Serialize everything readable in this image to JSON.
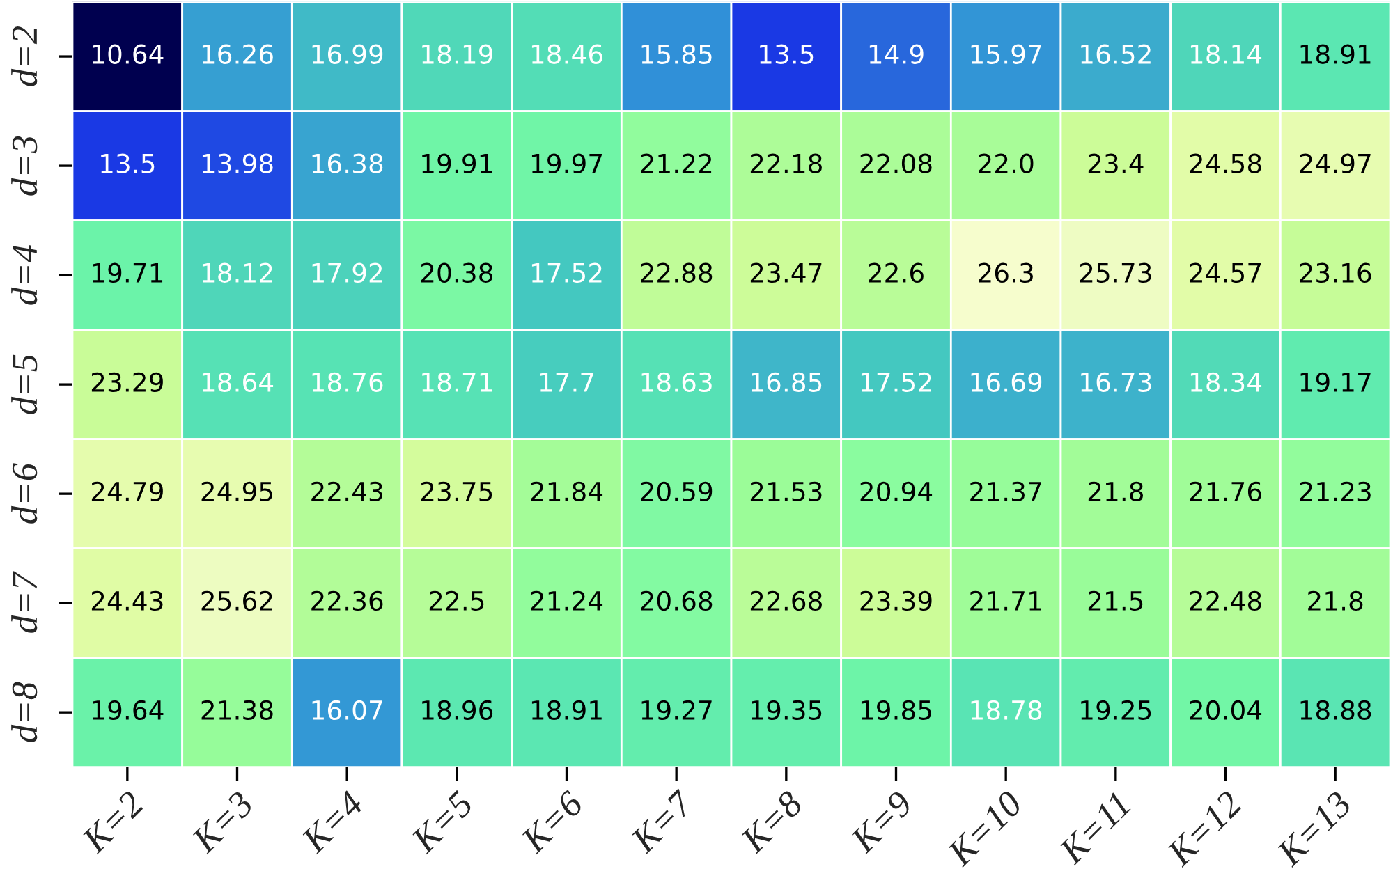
{
  "chart_data": {
    "type": "heatmap",
    "categories": [
      "K=2",
      "K=3",
      "K=4",
      "K=5",
      "K=6",
      "K=7",
      "K=8",
      "K=9",
      "K=10",
      "K=11",
      "K=12",
      "K=13"
    ],
    "y_categories": [
      "d=2",
      "d=3",
      "d=4",
      "d=5",
      "d=6",
      "d=7",
      "d=8"
    ],
    "cells": [
      [
        10.64,
        16.26,
        16.99,
        18.19,
        18.46,
        15.85,
        13.5,
        14.9,
        15.97,
        16.52,
        18.14,
        18.91
      ],
      [
        13.5,
        13.98,
        16.38,
        19.91,
        19.97,
        21.22,
        22.18,
        22.08,
        22.0,
        23.4,
        24.58,
        24.97
      ],
      [
        19.71,
        18.12,
        17.92,
        20.38,
        17.52,
        22.88,
        23.47,
        22.6,
        26.3,
        25.73,
        24.57,
        23.16
      ],
      [
        23.29,
        18.64,
        18.76,
        18.71,
        17.7,
        18.63,
        16.85,
        17.52,
        16.69,
        16.73,
        18.34,
        19.17
      ],
      [
        24.79,
        24.95,
        22.43,
        23.75,
        21.84,
        20.59,
        21.53,
        20.94,
        21.37,
        21.8,
        21.76,
        21.23
      ],
      [
        24.43,
        25.62,
        22.36,
        22.5,
        21.24,
        20.68,
        22.68,
        23.39,
        21.71,
        21.5,
        22.48,
        21.8
      ],
      [
        19.64,
        21.38,
        16.07,
        18.96,
        18.91,
        19.27,
        19.35,
        19.85,
        18.78,
        19.25,
        20.04,
        18.88
      ]
    ],
    "cell_labels": [
      [
        "10.64",
        "16.26",
        "16.99",
        "18.19",
        "18.46",
        "15.85",
        "13.5",
        "14.9",
        "15.97",
        "16.52",
        "18.14",
        "18.91"
      ],
      [
        "13.5",
        "13.98",
        "16.38",
        "19.91",
        "19.97",
        "21.22",
        "22.18",
        "22.08",
        "22.0",
        "23.4",
        "24.58",
        "24.97"
      ],
      [
        "19.71",
        "18.12",
        "17.92",
        "20.38",
        "17.52",
        "22.88",
        "23.47",
        "22.6",
        "26.3",
        "25.73",
        "24.57",
        "23.16"
      ],
      [
        "23.29",
        "18.64",
        "18.76",
        "18.71",
        "17.7",
        "18.63",
        "16.85",
        "17.52",
        "16.69",
        "16.73",
        "18.34",
        "19.17"
      ],
      [
        "24.79",
        "24.95",
        "22.43",
        "23.75",
        "21.84",
        "20.59",
        "21.53",
        "20.94",
        "21.37",
        "21.8",
        "21.76",
        "21.23"
      ],
      [
        "24.43",
        "25.62",
        "22.36",
        "22.5",
        "21.24",
        "20.68",
        "22.68",
        "23.39",
        "21.71",
        "21.5",
        "22.48",
        "21.8"
      ],
      [
        "19.64",
        "21.38",
        "16.07",
        "18.96",
        "18.91",
        "19.27",
        "19.35",
        "19.85",
        "18.78",
        "19.25",
        "20.04",
        "18.88"
      ]
    ]
  }
}
